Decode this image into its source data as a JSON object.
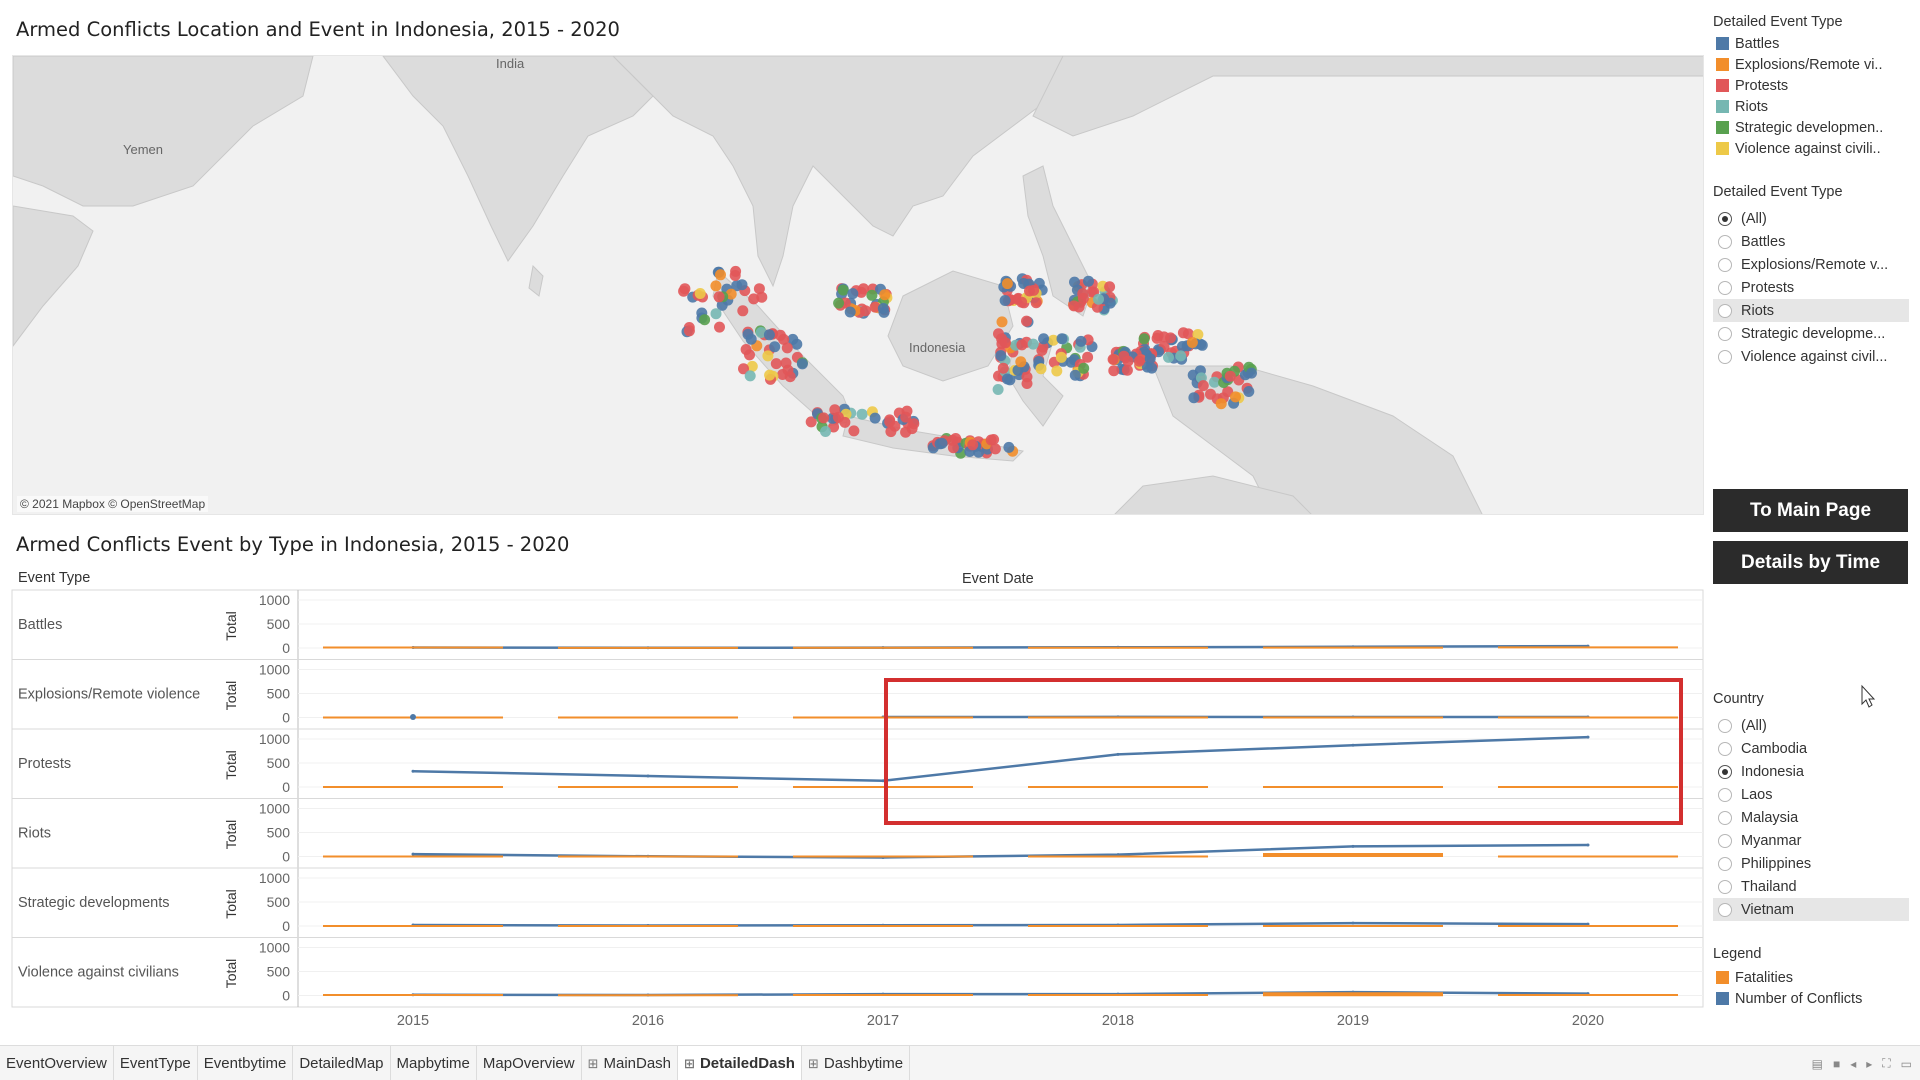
{
  "titles": {
    "map": "Armed Conflicts Location and Event in Indonesia, 2015 - 2020",
    "chart": "Armed Conflicts Event by Type in Indonesia, 2015 - 2020"
  },
  "map": {
    "labels": {
      "yemen": "Yemen",
      "india": "India",
      "indonesia": "Indonesia"
    },
    "attribution": "© 2021 Mapbox © OpenStreetMap"
  },
  "color_legend": {
    "heading": "Detailed Event Type",
    "items": [
      {
        "label": "Battles",
        "color": "#4e79a7"
      },
      {
        "label": "Explosions/Remote vi..",
        "color": "#f28e2b"
      },
      {
        "label": "Protests",
        "color": "#e15759"
      },
      {
        "label": "Riots",
        "color": "#76b7b2"
      },
      {
        "label": "Strategic developmen..",
        "color": "#59a14f"
      },
      {
        "label": "Violence against civili..",
        "color": "#edc948"
      }
    ]
  },
  "event_filter": {
    "heading": "Detailed Event Type",
    "selected": "(All)",
    "highlighted": "Riots",
    "options": [
      "(All)",
      "Battles",
      "Explosions/Remote v...",
      "Protests",
      "Riots",
      "Strategic developme...",
      "Violence against civil..."
    ]
  },
  "buttons": {
    "main_page": "To Main Page",
    "details_by_time": "Details by Time"
  },
  "country_filter": {
    "heading": "Country",
    "selected": "Indonesia",
    "highlighted": "Vietnam",
    "options": [
      "(All)",
      "Cambodia",
      "Indonesia",
      "Laos",
      "Malaysia",
      "Myanmar",
      "Philippines",
      "Thailand",
      "Vietnam"
    ]
  },
  "measure_legend": {
    "heading": "Legend",
    "items": [
      {
        "label": "Fatalities",
        "color": "#f28e2b"
      },
      {
        "label": "Number of Conflicts",
        "color": "#4e79a7"
      }
    ]
  },
  "chart_headers": {
    "event_type": "Event Type",
    "event_date": "Event Date",
    "measure": "Total"
  },
  "chart_data": {
    "type": "line",
    "x": [
      "2015",
      "2016",
      "2017",
      "2018",
      "2019",
      "2020"
    ],
    "ylim": [
      0,
      1000
    ],
    "yticks": [
      "1000",
      "500",
      "0"
    ],
    "panels": [
      {
        "name": "Battles",
        "series": [
          {
            "name": "Number of Conflicts",
            "values": [
              10,
              5,
              8,
              15,
              25,
              40
            ]
          },
          {
            "name": "Fatalities",
            "values": [
              10,
              3,
              4,
              6,
              8,
              12
            ]
          }
        ]
      },
      {
        "name": "Explosions/Remote violence",
        "series": [
          {
            "name": "Number of Conflicts",
            "values": [
              null,
              null,
              10,
              12,
              10,
              10
            ]
          },
          {
            "name": "Fatalities",
            "values": [
              0,
              0,
              0,
              0,
              0,
              0
            ]
          }
        ]
      },
      {
        "name": "Protests",
        "series": [
          {
            "name": "Number of Conflicts",
            "values": [
              330,
              230,
              130,
              680,
              870,
              1040
            ]
          },
          {
            "name": "Fatalities",
            "values": [
              0,
              0,
              0,
              0,
              0,
              0
            ]
          }
        ]
      },
      {
        "name": "Riots",
        "series": [
          {
            "name": "Number of Conflicts",
            "values": [
              50,
              5,
              -20,
              40,
              210,
              240
            ]
          },
          {
            "name": "Fatalities",
            "values": [
              0,
              0,
              0,
              0,
              30,
              0
            ]
          }
        ]
      },
      {
        "name": "Strategic developments",
        "series": [
          {
            "name": "Number of Conflicts",
            "values": [
              20,
              10,
              15,
              20,
              60,
              40
            ]
          },
          {
            "name": "Fatalities",
            "values": [
              0,
              0,
              0,
              0,
              0,
              0
            ]
          }
        ]
      },
      {
        "name": "Violence against civilians",
        "series": [
          {
            "name": "Number of Conflicts",
            "values": [
              15,
              10,
              30,
              30,
              70,
              40
            ]
          },
          {
            "name": "Fatalities",
            "values": [
              10,
              5,
              10,
              10,
              25,
              10
            ]
          }
        ]
      }
    ]
  },
  "tabs": {
    "items": [
      {
        "label": "EventOverview",
        "grid": false
      },
      {
        "label": "EventType",
        "grid": false
      },
      {
        "label": "Eventbytime",
        "grid": false
      },
      {
        "label": "DetailedMap",
        "grid": false
      },
      {
        "label": "Mapbytime",
        "grid": false
      },
      {
        "label": "MapOverview",
        "grid": false
      },
      {
        "label": "MainDash",
        "grid": true
      },
      {
        "label": "DetailedDash",
        "grid": true
      },
      {
        "label": "Dashbytime",
        "grid": true
      }
    ],
    "active": "DetailedDash"
  }
}
